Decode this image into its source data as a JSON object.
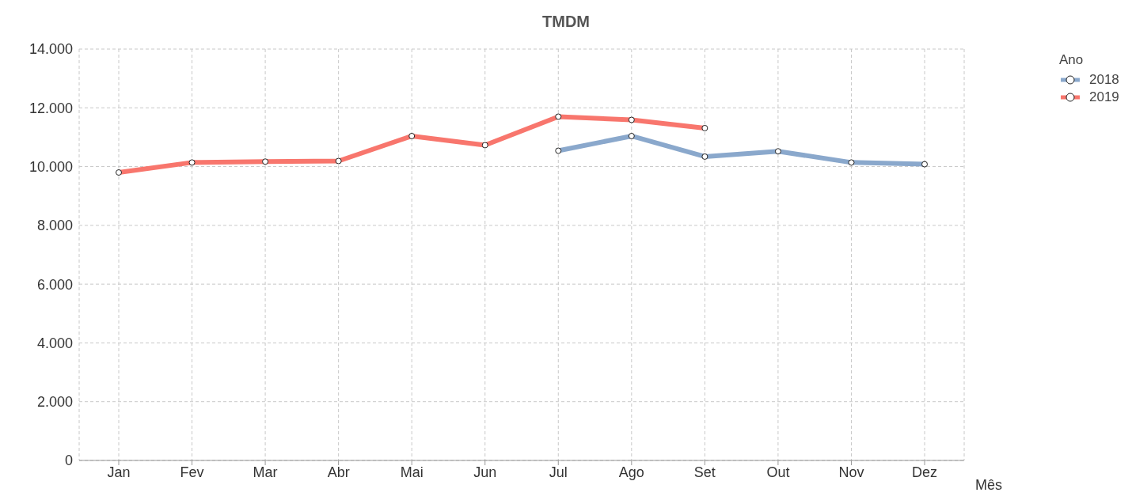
{
  "chart_data": {
    "type": "line",
    "title": "TMDM",
    "xlabel": "Mês",
    "legend_title": "Ano",
    "categories": [
      "Jan",
      "Fev",
      "Mar",
      "Abr",
      "Mai",
      "Jun",
      "Jul",
      "Ago",
      "Set",
      "Out",
      "Nov",
      "Dez"
    ],
    "series": [
      {
        "name": "2018",
        "color": "#8aa8cc",
        "values": [
          null,
          null,
          null,
          null,
          null,
          null,
          10540,
          11040,
          10340,
          10520,
          10140,
          10080
        ]
      },
      {
        "name": "2019",
        "color": "#f8766d",
        "values": [
          9800,
          10140,
          10170,
          10190,
          11040,
          10730,
          11700,
          11590,
          11310,
          null,
          null,
          null
        ]
      }
    ],
    "ylim": [
      0,
      14000
    ],
    "yticks": [
      0,
      {
        "value": 2000,
        "label": "2.000"
      },
      {
        "value": 4000,
        "label": "4.000"
      },
      {
        "value": 6000,
        "label": "6.000"
      },
      {
        "value": 8000,
        "label": "8.000"
      },
      {
        "value": 10000,
        "label": "10.000"
      },
      {
        "value": 12000,
        "label": "12.000"
      },
      {
        "value": 14000,
        "label": "14.000"
      }
    ],
    "grid": true,
    "legend": "top right",
    "marker": "circle",
    "line_style": "solid"
  }
}
